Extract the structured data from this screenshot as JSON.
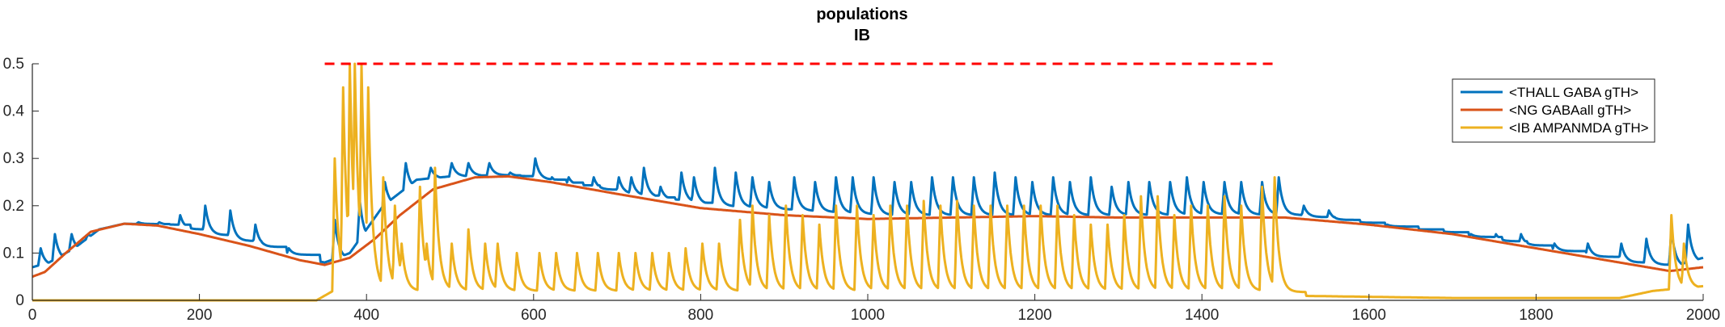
{
  "chart_data": {
    "type": "line",
    "title": [
      "populations",
      "IB"
    ],
    "xlabel": "",
    "ylabel": "",
    "xlim": [
      0,
      2000
    ],
    "ylim": [
      0,
      0.5
    ],
    "xticks": [
      0,
      200,
      400,
      600,
      800,
      1000,
      1200,
      1400,
      1600,
      1800,
      2000
    ],
    "xtick_labels": [
      "0",
      "200",
      "400",
      "600",
      "800",
      "1000",
      "1200",
      "1400",
      "1600",
      "1800",
      "2000"
    ],
    "yticks": [
      0,
      0.1,
      0.2,
      0.3,
      0.4,
      0.5
    ],
    "ytick_labels": [
      "0",
      "0.1",
      "0.2",
      "0.3",
      "0.4",
      "0.5"
    ],
    "grid": false,
    "legend_position": "top-right",
    "reference_line": {
      "y": 0.5,
      "x_start": 350,
      "x_end": 1490,
      "color": "#ff0000",
      "style": "dashed"
    },
    "series": [
      {
        "name": "<THALL GABA gTH>",
        "color": "#0072bd",
        "baseline": [
          [
            0,
            0.07
          ],
          [
            20,
            0.08
          ],
          [
            50,
            0.11
          ],
          [
            80,
            0.15
          ],
          [
            110,
            0.162
          ],
          [
            150,
            0.16
          ],
          [
            200,
            0.14
          ],
          [
            260,
            0.115
          ],
          [
            320,
            0.09
          ],
          [
            350,
            0.08
          ],
          [
            380,
            0.1
          ],
          [
            420,
            0.2
          ],
          [
            460,
            0.255
          ],
          [
            500,
            0.262
          ],
          [
            560,
            0.265
          ],
          [
            600,
            0.255
          ],
          [
            700,
            0.225
          ],
          [
            800,
            0.2
          ],
          [
            900,
            0.19
          ],
          [
            1000,
            0.18
          ],
          [
            1100,
            0.18
          ],
          [
            1200,
            0.18
          ],
          [
            1300,
            0.18
          ],
          [
            1400,
            0.182
          ],
          [
            1500,
            0.18
          ],
          [
            1600,
            0.16
          ],
          [
            1700,
            0.14
          ],
          [
            1800,
            0.11
          ],
          [
            1900,
            0.08
          ],
          [
            1960,
            0.07
          ],
          [
            2000,
            0.09
          ]
        ],
        "spike_times": [
          8,
          25,
          45,
          65,
          125,
          150,
          175,
          205,
          235,
          265,
          305,
          360,
          390,
          420,
          445,
          475,
          500,
          520,
          545,
          570,
          600,
          620,
          640,
          670,
          700,
          715,
          730,
          750,
          775,
          790,
          815,
          840,
          860,
          880,
          910,
          935,
          960,
          980,
          1005,
          1030,
          1050,
          1075,
          1100,
          1125,
          1150,
          1175,
          1195,
          1220,
          1240,
          1265,
          1290,
          1310,
          1335,
          1360,
          1380,
          1400,
          1425,
          1445,
          1470,
          1490,
          1520,
          1550,
          1580,
          1620,
          1650,
          1680,
          1720,
          1750,
          1780,
          1820,
          1860,
          1900,
          1930,
          1960,
          1980
        ],
        "spike_heights": [
          0.11,
          0.14,
          0.14,
          0.14,
          0.165,
          0.165,
          0.18,
          0.2,
          0.19,
          0.16,
          0.11,
          0.17,
          0.21,
          0.25,
          0.29,
          0.28,
          0.29,
          0.29,
          0.29,
          0.27,
          0.3,
          0.26,
          0.26,
          0.26,
          0.26,
          0.26,
          0.28,
          0.24,
          0.27,
          0.26,
          0.28,
          0.27,
          0.26,
          0.25,
          0.26,
          0.25,
          0.26,
          0.26,
          0.26,
          0.25,
          0.25,
          0.26,
          0.26,
          0.26,
          0.27,
          0.26,
          0.25,
          0.26,
          0.25,
          0.26,
          0.24,
          0.25,
          0.25,
          0.25,
          0.26,
          0.25,
          0.25,
          0.25,
          0.25,
          0.26,
          0.2,
          0.19,
          0.17,
          0.16,
          0.15,
          0.15,
          0.14,
          0.14,
          0.14,
          0.12,
          0.12,
          0.12,
          0.13,
          0.15,
          0.16
        ]
      },
      {
        "name": "<NG GABAall gTH>",
        "color": "#d95319",
        "baseline": [
          [
            0,
            0.05
          ],
          [
            15,
            0.06
          ],
          [
            40,
            0.1
          ],
          [
            70,
            0.145
          ],
          [
            110,
            0.162
          ],
          [
            150,
            0.158
          ],
          [
            200,
            0.14
          ],
          [
            260,
            0.115
          ],
          [
            320,
            0.085
          ],
          [
            350,
            0.075
          ],
          [
            380,
            0.09
          ],
          [
            410,
            0.13
          ],
          [
            440,
            0.18
          ],
          [
            480,
            0.235
          ],
          [
            530,
            0.26
          ],
          [
            570,
            0.262
          ],
          [
            620,
            0.25
          ],
          [
            700,
            0.225
          ],
          [
            800,
            0.195
          ],
          [
            900,
            0.18
          ],
          [
            1000,
            0.172
          ],
          [
            1100,
            0.175
          ],
          [
            1200,
            0.178
          ],
          [
            1300,
            0.175
          ],
          [
            1400,
            0.175
          ],
          [
            1500,
            0.175
          ],
          [
            1600,
            0.16
          ],
          [
            1700,
            0.14
          ],
          [
            1800,
            0.11
          ],
          [
            1900,
            0.08
          ],
          [
            1960,
            0.062
          ],
          [
            2000,
            0.07
          ]
        ]
      },
      {
        "name": "<IB AMPANMDA gTH>",
        "color": "#edb120",
        "baseline": [
          [
            0,
            0
          ],
          [
            340,
            0
          ],
          [
            360,
            0.02
          ],
          [
            400,
            0.02
          ],
          [
            430,
            0.02
          ],
          [
            500,
            0.02
          ],
          [
            1480,
            0.02
          ],
          [
            1500,
            0.01
          ],
          [
            1700,
            0.005
          ],
          [
            1900,
            0.005
          ],
          [
            1940,
            0.02
          ],
          [
            2000,
            0.03
          ]
        ],
        "spike_times": [
          360,
          370,
          378,
          384,
          392,
          400,
          418,
          432,
          440,
          462,
          470,
          480,
          500,
          520,
          540,
          555,
          578,
          605,
          625,
          650,
          675,
          700,
          720,
          740,
          760,
          780,
          800,
          820,
          845,
          860,
          880,
          900,
          920,
          940,
          960,
          985,
          1005,
          1025,
          1045,
          1065,
          1085,
          1105,
          1125,
          1145,
          1165,
          1185,
          1205,
          1225,
          1245,
          1265,
          1285,
          1305,
          1325,
          1345,
          1365,
          1385,
          1405,
          1425,
          1445,
          1470,
          1485,
          1960,
          1975
        ],
        "spike_heights": [
          0.3,
          0.45,
          0.5,
          0.5,
          0.5,
          0.45,
          0.26,
          0.2,
          0.12,
          0.24,
          0.12,
          0.28,
          0.12,
          0.15,
          0.12,
          0.12,
          0.1,
          0.1,
          0.1,
          0.1,
          0.1,
          0.1,
          0.1,
          0.1,
          0.1,
          0.11,
          0.12,
          0.12,
          0.17,
          0.2,
          0.18,
          0.2,
          0.18,
          0.16,
          0.2,
          0.2,
          0.18,
          0.2,
          0.2,
          0.21,
          0.2,
          0.21,
          0.2,
          0.2,
          0.2,
          0.2,
          0.2,
          0.2,
          0.18,
          0.16,
          0.16,
          0.18,
          0.22,
          0.22,
          0.18,
          0.2,
          0.2,
          0.22,
          0.2,
          0.24,
          0.26,
          0.18,
          0.12
        ]
      }
    ]
  }
}
